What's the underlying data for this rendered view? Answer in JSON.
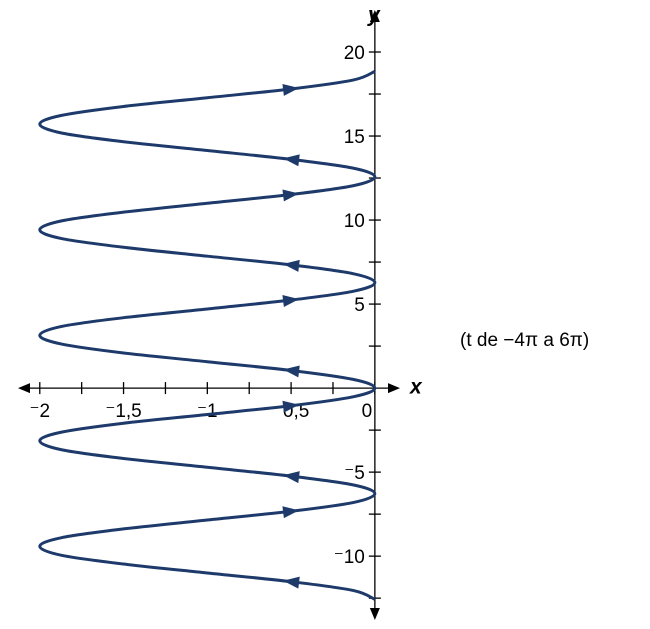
{
  "chart_data": {
    "type": "line",
    "x_label": "x",
    "y_label": "y",
    "annotation": "(t de −4π a 6π)",
    "xlim": [
      -2.13,
      0.15
    ],
    "ylim": [
      -13.8,
      22.5
    ],
    "xticks": [
      {
        "value": -2,
        "label": "⁻2"
      },
      {
        "value": -1.5,
        "label": "⁻1,5"
      },
      {
        "value": -1,
        "label": "⁻1"
      },
      {
        "value": -0.5,
        "label": "⁻0,5"
      },
      0
    ],
    "xticks_minor": [
      -1.75,
      -1.25,
      -0.75,
      -0.25
    ],
    "yticks": [
      {
        "value": -10,
        "label": "⁻10"
      },
      {
        "value": -5,
        "label": "⁻5"
      },
      5,
      10,
      15,
      20
    ],
    "yticks_minor": [
      -12.5,
      -7.5,
      -2.5,
      2.5,
      7.5,
      12.5,
      17.5
    ],
    "x": [
      0,
      -0.13,
      -0.5,
      -1,
      -1.5,
      -1.87,
      -2,
      -1.87,
      -1.5,
      -1,
      -0.5,
      -0.13,
      0,
      -0.13,
      -0.5,
      -1,
      -1.5,
      -1.87,
      -2,
      -1.87,
      -1.5,
      -1,
      -0.5,
      -0.13,
      0,
      -0.13,
      -0.5,
      -1,
      -1.5,
      -1.87,
      -2,
      -1.87,
      -1.5,
      -1,
      -0.5,
      -0.13,
      0,
      -0.13,
      -0.5,
      -1,
      -1.5,
      -1.87,
      -2,
      -1.87,
      -1.5,
      -1,
      -0.5,
      -0.13,
      0,
      -0.13,
      -0.5,
      -1,
      -1.5,
      -1.87,
      -2,
      -1.87,
      -1.5,
      -1,
      -0.5,
      -0.13,
      0
    ],
    "series": [
      {
        "color": "#1d3a6b",
        "values": [
          -12.57,
          -12.04,
          -11.52,
          -11.0,
          -10.47,
          -9.95,
          -9.42,
          -8.9,
          -8.38,
          -7.85,
          -7.33,
          -6.81,
          -6.28,
          -5.76,
          -5.24,
          -4.71,
          -4.19,
          -3.67,
          -3.14,
          -2.62,
          -2.09,
          -1.57,
          -1.05,
          -0.52,
          0,
          0.52,
          1.05,
          1.57,
          2.09,
          2.62,
          3.14,
          3.67,
          4.19,
          4.71,
          5.24,
          5.76,
          6.28,
          6.81,
          7.33,
          7.85,
          8.38,
          8.9,
          9.42,
          9.95,
          10.47,
          11.0,
          11.52,
          12.04,
          12.57,
          13.09,
          13.61,
          14.14,
          14.66,
          15.18,
          15.71,
          16.23,
          16.76,
          17.28,
          17.8,
          18.33,
          18.85
        ]
      }
    ]
  }
}
